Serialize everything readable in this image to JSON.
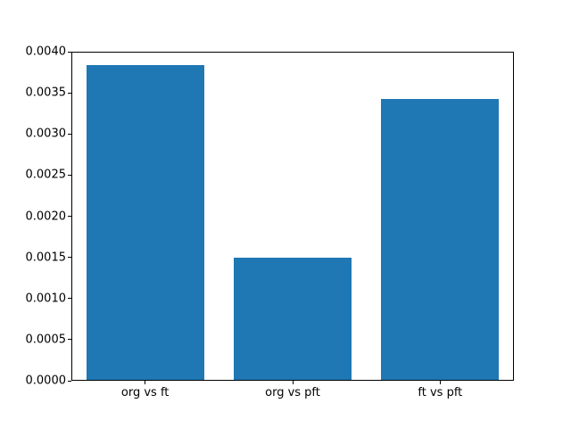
{
  "chart_data": {
    "type": "bar",
    "categories": [
      "org vs ft",
      "org vs pft",
      "ft vs pft"
    ],
    "values": [
      0.00385,
      0.00149,
      0.00343
    ],
    "title": "",
    "xlabel": "",
    "ylabel": "",
    "ylim": [
      0,
      0.004
    ],
    "yticks": [
      0.0,
      0.0005,
      0.001,
      0.0015,
      0.002,
      0.0025,
      0.003,
      0.0035,
      0.004
    ],
    "ytick_labels": [
      "0.0000",
      "0.0005",
      "0.0010",
      "0.0015",
      "0.0020",
      "0.0025",
      "0.0030",
      "0.0035",
      "0.0040"
    ],
    "bar_color": "#1f77b4",
    "axis_color": "#000000",
    "background_color": "#ffffff",
    "bar_width_fraction": 0.8,
    "grid": false,
    "legend": false
  }
}
